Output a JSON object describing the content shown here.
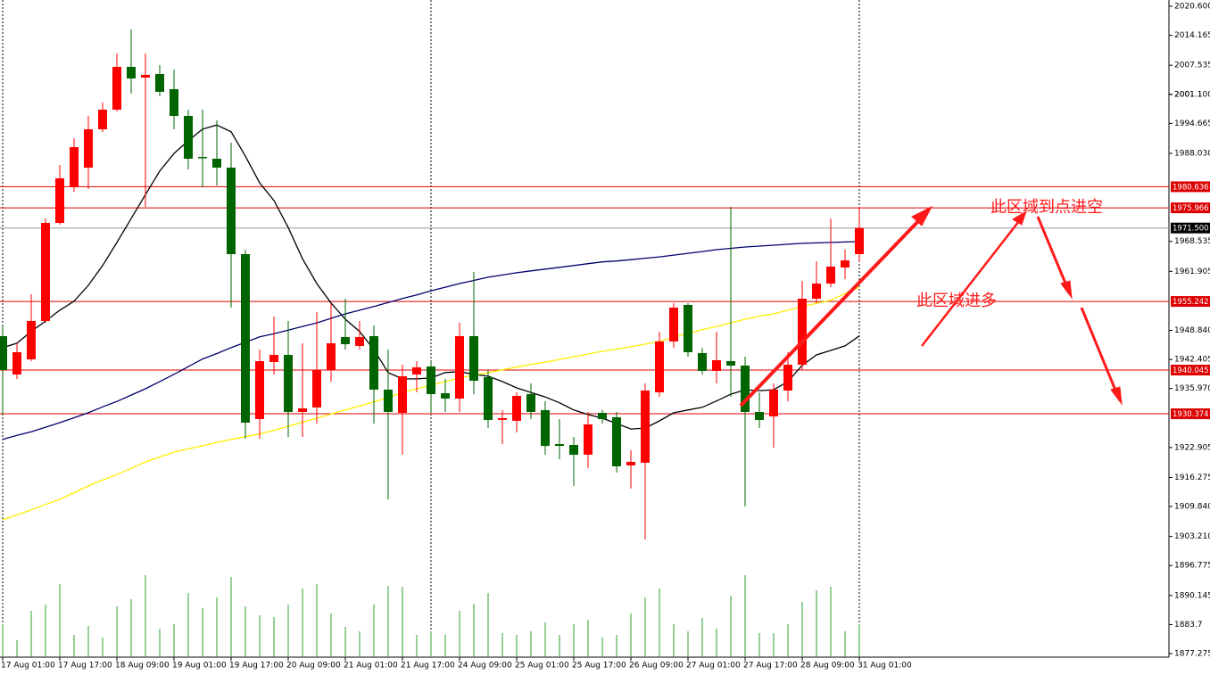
{
  "chart_data": {
    "type": "candlestick",
    "categories": [
      "17 Aug 01:00",
      null,
      null,
      null,
      "17 Aug 17:00",
      null,
      null,
      null,
      "18 Aug 09:00",
      null,
      null,
      null,
      "19 Aug 01:00",
      null,
      null,
      null,
      "19 Aug 17:00",
      null,
      null,
      null,
      "20 Aug 09:00",
      null,
      null,
      null,
      "21 Aug 01:00",
      null,
      null,
      null,
      "21 Aug 17:00",
      null,
      null,
      null,
      "24 Aug 09:00",
      null,
      null,
      null,
      "25 Aug 01:00",
      null,
      null,
      null,
      "25 Aug 17:00",
      null,
      null,
      null,
      "26 Aug 09:00",
      null,
      null,
      null,
      "27 Aug 01:00",
      null,
      null,
      null,
      "27 Aug 17:00",
      null,
      null,
      null,
      "28 Aug 09:00",
      null,
      null,
      null,
      "31 Aug 01:00"
    ],
    "open": [
      1947.56,
      1939.07,
      1942.43,
      1950.92,
      1972.63,
      1980.53,
      1984.87,
      1993.36,
      1997.7,
      2007.18,
      2004.8,
      2005.6,
      2002.24,
      1996.32,
      1987.24,
      1986.84,
      1984.87,
      1965.72,
      1929.2,
      1941.83,
      1943.41,
      1930.78,
      1931.77,
      1940.06,
      1947.36,
      1945.39,
      1947.56,
      1935.72,
      1930.58,
      1939.07,
      1940.85,
      1934.93,
      1933.74,
      1947.56,
      1938.48,
      1929.01,
      1928.81,
      1934.73,
      1931.18,
      1923.67,
      1923.47,
      1921.31,
      1930.58,
      1929.6,
      1918.94,
      1919.53,
      1935.12,
      1946.38,
      1954.47,
      1943.81,
      1939.86,
      1942.03,
      1941.04,
      1930.78,
      1929.79,
      1935.52,
      1941.23,
      1955.85,
      1959.21,
      1962.76,
      1965.72
    ],
    "high": [
      1949.93,
      1945.98,
      1956.84,
      1973.62,
      1985.46,
      1991.38,
      1996.32,
      1999.28,
      2010.14,
      2015.47,
      2010.14,
      2007.57,
      2006.58,
      1997.7,
      1997.7,
      1995.33,
      1990.4,
      1966.71,
      1944.6,
      1951.9,
      1950.92,
      1945.98,
      1952.89,
      1954.86,
      1955.85,
      1950.92,
      1949.93,
      1944.6,
      1941.23,
      1942.03,
      1942.03,
      1938.08,
      1950.52,
      1961.77,
      1940.06,
      1931.16,
      1935.12,
      1937.1,
      1933.15,
      1929.2,
      1925.25,
      1930.78,
      1931.16,
      1930.78,
      1922.3,
      1937.1,
      1948.55,
      1954.86,
      1954.86,
      1945.0,
      1948.55,
      1976.18,
      1943.02,
      1935.12,
      1937.1,
      1944.0,
      1959.8,
      1964.12,
      1973.62,
      1966.71,
      1976.18
    ],
    "low": [
      1930.19,
      1938.08,
      1942.03,
      1950.52,
      1972.24,
      1979.54,
      1980.13,
      1992.77,
      1997.31,
      2001.25,
      1976.18,
      2000.66,
      1993.36,
      1984.47,
      1980.53,
      1980.92,
      1953.88,
      1924.86,
      1924.86,
      1939.07,
      1925.25,
      1925.25,
      1928.22,
      1937.49,
      1944.6,
      1944.6,
      1928.22,
      1911.44,
      1921.31,
      1935.12,
      1930.58,
      1930.78,
      1930.78,
      1934.73,
      1927.23,
      1923.67,
      1926.24,
      1929.2,
      1921.31,
      1920.32,
      1914.4,
      1918.35,
      1928.22,
      1917.36,
      1913.81,
      1902.55,
      1934.14,
      1945.0,
      1943.02,
      1939.07,
      1937.1,
      1934.14,
      1909.86,
      1927.23,
      1922.89,
      1933.15,
      1940.06,
      1954.86,
      1958.42,
      1960.17,
      1964.12
    ],
    "close": [
      1940.06,
      1944.0,
      1950.92,
      1972.63,
      1982.5,
      1989.41,
      1993.36,
      1997.7,
      2007.18,
      2004.61,
      2005.4,
      2001.65,
      1996.32,
      1986.84,
      1987.04,
      1984.87,
      1965.72,
      1928.41,
      1942.03,
      1943.41,
      1930.78,
      1931.57,
      1940.06,
      1945.98,
      1945.78,
      1947.36,
      1935.72,
      1930.78,
      1938.68,
      1940.65,
      1934.73,
      1933.74,
      1947.56,
      1937.69,
      1929.01,
      1929.4,
      1934.33,
      1930.78,
      1923.26,
      1923.26,
      1921.31,
      1928.02,
      1929.2,
      1918.74,
      1919.73,
      1935.52,
      1946.38,
      1953.88,
      1944.0,
      1939.86,
      1942.23,
      1941.04,
      1930.78,
      1929.01,
      1935.72,
      1941.23,
      1955.85,
      1959.21,
      1962.96,
      1964.34,
      1971.5
    ],
    "volume": [
      37,
      19,
      52,
      59,
      82,
      25,
      35,
      22,
      57,
      65,
      92,
      32,
      37,
      72,
      55,
      67,
      90,
      57,
      47,
      45,
      59,
      77,
      82,
      49,
      34,
      29,
      59,
      80,
      79,
      25,
      29,
      25,
      52,
      60,
      72,
      27,
      25,
      29,
      39,
      25,
      37,
      42,
      22,
      25,
      49,
      67,
      77,
      37,
      29,
      44,
      32,
      69,
      92,
      27,
      27,
      37,
      62,
      75,
      79,
      29,
      37
    ],
    "up_color": "#ff0000",
    "down_color": "#006400",
    "volume_color": "#2ca02c",
    "ma_lines": [
      {
        "color": "#000000",
        "values": [
          1945.0,
          1946.0,
          1948.6,
          1950.9,
          1953.3,
          1955.3,
          1958.8,
          1963.2,
          1968.3,
          1973.6,
          1978.9,
          1984.1,
          1988.0,
          1990.8,
          1993.4,
          1994.3,
          1992.8,
          1987.4,
          1981.5,
          1977.6,
          1971.6,
          1964.7,
          1959.2,
          1954.9,
          1951.3,
          1948.6,
          1944.6,
          1939.5,
          1938.1,
          1938.1,
          1938.3,
          1939.5,
          1939.7,
          1939.1,
          1938.7,
          1937.5,
          1936.1,
          1935.1,
          1934.1,
          1932.8,
          1931.2,
          1930.2,
          1929.4,
          1928.2,
          1927.0,
          1927.2,
          1928.8,
          1930.6,
          1931.2,
          1931.8,
          1933.2,
          1934.7,
          1935.7,
          1935.5,
          1935.7,
          1937.5,
          1941.1,
          1943.4,
          1944.4,
          1945.4,
          1947.6
        ]
      },
      {
        "color": "#00006e",
        "values": [
          1924.7,
          1925.6,
          1926.4,
          1927.4,
          1928.4,
          1929.5,
          1930.6,
          1931.9,
          1933.1,
          1934.5,
          1935.9,
          1937.5,
          1939.1,
          1940.8,
          1942.5,
          1943.7,
          1945.0,
          1946.2,
          1947.4,
          1948.1,
          1948.9,
          1949.7,
          1950.5,
          1951.5,
          1952.5,
          1953.3,
          1954.1,
          1955.0,
          1955.9,
          1956.7,
          1957.6,
          1958.4,
          1959.2,
          1959.9,
          1960.6,
          1961.1,
          1961.6,
          1962.0,
          1962.4,
          1962.8,
          1963.2,
          1963.6,
          1964.0,
          1964.2,
          1964.5,
          1964.8,
          1965.1,
          1965.5,
          1965.9,
          1966.3,
          1966.7,
          1967.0,
          1967.3,
          1967.5,
          1967.7,
          1967.9,
          1968.1,
          1968.2,
          1968.3,
          1968.4,
          1968.5
        ]
      },
      {
        "color": "#ffee00",
        "values": [
          1906.9,
          1908.0,
          1909.1,
          1910.3,
          1911.4,
          1912.9,
          1914.4,
          1915.7,
          1916.9,
          1918.3,
          1919.7,
          1920.8,
          1921.9,
          1922.6,
          1923.3,
          1924.0,
          1924.7,
          1925.3,
          1925.9,
          1926.7,
          1927.6,
          1928.5,
          1929.4,
          1930.3,
          1931.2,
          1932.1,
          1933.0,
          1934.0,
          1935.1,
          1935.9,
          1936.7,
          1937.5,
          1938.3,
          1938.9,
          1939.5,
          1940.1,
          1940.7,
          1941.3,
          1941.8,
          1942.4,
          1943.0,
          1943.6,
          1944.2,
          1944.7,
          1945.2,
          1945.8,
          1946.4,
          1947.3,
          1948.2,
          1949.0,
          1949.7,
          1950.5,
          1951.3,
          1952.0,
          1952.5,
          1953.3,
          1954.1,
          1954.8,
          1955.5,
          1957.0,
          1958.4
        ]
      }
    ],
    "levels": [
      1980.636,
      1975.966,
      1955.242,
      1940.045,
      1930.374
    ],
    "level_color": "#dd0000",
    "current_price": {
      "value": 1971.5,
      "label": "1971.500"
    },
    "ylim": [
      1877.275,
      2020.6
    ],
    "yticks": [
      {
        "value": 2020.6,
        "label": "2020.600"
      },
      2014.165,
      2007.535,
      {
        "value": 2001.1,
        "label": "2001.100"
      },
      2001.1,
      1994.665,
      {
        "value": 1988.03,
        "label": "1988.030"
      },
      1968.535,
      1961.905,
      {
        "value": 1948.84,
        "label": "1948.840"
      },
      1942.405,
      {
        "value": 1935.97,
        "label": "1935.970"
      },
      1922.905,
      1916.275,
      {
        "value": 1909.84,
        "label": "1909.840"
      },
      {
        "value": 1903.21,
        "label": "1903.210"
      },
      1896.775,
      1890.145,
      1883.7,
      1877.275
    ],
    "grid": false,
    "annotations": [
      "此区域到点进空",
      "此区域进多"
    ]
  }
}
